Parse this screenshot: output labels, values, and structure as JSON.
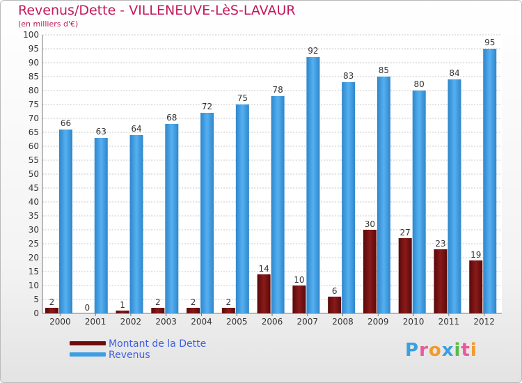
{
  "title": "Revenus/Dette - VILLENEUVE-LèS-LAVAUR",
  "subtitle": "(en milliers d'€)",
  "logo_text": "Proxiti",
  "logo_colors": [
    "#3aa0e0",
    "#e85a9b",
    "#f19a2d",
    "#3aa0e0",
    "#59b94a",
    "#e85a9b",
    "#f19a2d"
  ],
  "colors": {
    "dette": "#6e0c0c",
    "revenus": "#3c9ee3",
    "title": "#c2185b",
    "legend_text": "#3f5fe0"
  },
  "legend": [
    {
      "label": "Montant de la Dette",
      "color": "#6e0c0c"
    },
    {
      "label": "Revenus",
      "color": "#3c9ee3"
    }
  ],
  "chart_data": {
    "type": "bar",
    "categories": [
      "2000",
      "2001",
      "2002",
      "2003",
      "2004",
      "2005",
      "2006",
      "2007",
      "2008",
      "2009",
      "2010",
      "2011",
      "2012"
    ],
    "series": [
      {
        "name": "Montant de la Dette",
        "values": [
          2,
          0,
          1,
          2,
          2,
          2,
          14,
          10,
          6,
          30,
          27,
          23,
          19
        ]
      },
      {
        "name": "Revenus",
        "values": [
          66,
          63,
          64,
          68,
          72,
          75,
          78,
          92,
          83,
          85,
          80,
          84,
          95
        ]
      }
    ],
    "ylim": [
      0,
      100
    ],
    "ytick_step": 5,
    "grid": true,
    "legend_position": "bottom-left"
  }
}
